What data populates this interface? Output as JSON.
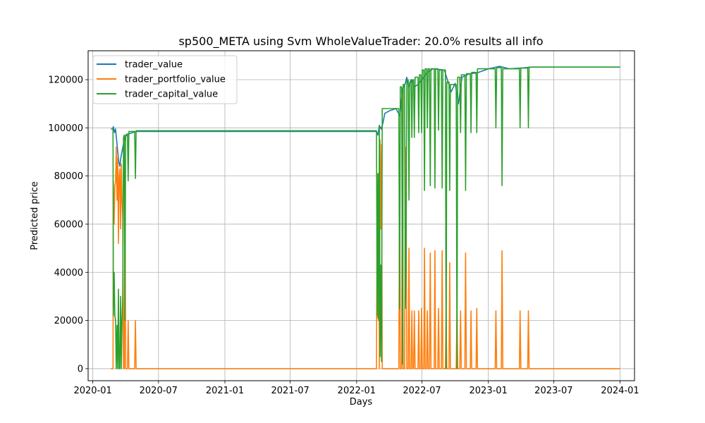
{
  "chart_data": {
    "type": "line",
    "title": "sp500_META using Svm WholeValueTrader: 20.0% results all info",
    "xlabel": "Days",
    "ylabel": "Predicted price",
    "xlim": [
      "2019-12-19",
      "2024-02-10"
    ],
    "ylim": [
      -5000,
      132000
    ],
    "x_ticks": [
      "2020-01-01",
      "2020-07-01",
      "2021-01-01",
      "2021-07-01",
      "2022-01-01",
      "2022-07-01",
      "2023-01-01",
      "2023-07-01",
      "2024-01-01"
    ],
    "x_tick_labels": [
      "2020-01",
      "2020-07",
      "2021-01",
      "2021-07",
      "2022-01",
      "2022-07",
      "2023-01",
      "2023-07",
      "2024-01"
    ],
    "y_ticks": [
      0,
      20000,
      40000,
      60000,
      80000,
      100000,
      120000
    ],
    "y_tick_labels": [
      "0",
      "20000",
      "40000",
      "60000",
      "80000",
      "100000",
      "120000"
    ],
    "grid": true,
    "legend_position": "top-left",
    "series": [
      {
        "name": "trader_value",
        "color": "#1f77b4",
        "points": [
          [
            "2020-02-25",
            99500
          ],
          [
            "2020-02-27",
            100500
          ],
          [
            "2020-03-01",
            98000
          ],
          [
            "2020-03-04",
            99500
          ],
          [
            "2020-03-07",
            95000
          ],
          [
            "2020-03-10",
            90000
          ],
          [
            "2020-03-13",
            86000
          ],
          [
            "2020-03-16",
            84000
          ],
          [
            "2020-03-19",
            88000
          ],
          [
            "2020-03-23",
            91000
          ],
          [
            "2020-03-27",
            94000
          ],
          [
            "2020-04-01",
            96500
          ],
          [
            "2020-04-10",
            97500
          ],
          [
            "2020-04-20",
            98000
          ],
          [
            "2020-05-01",
            98500
          ],
          [
            "2020-05-15",
            98500
          ],
          [
            "2022-02-25",
            98500
          ],
          [
            "2022-03-01",
            97000
          ],
          [
            "2022-03-05",
            101000
          ],
          [
            "2022-03-10",
            99500
          ],
          [
            "2022-03-15",
            102000
          ],
          [
            "2022-03-20",
            106000
          ],
          [
            "2022-04-01",
            107000
          ],
          [
            "2022-04-20",
            108000
          ],
          [
            "2022-05-01",
            105000
          ],
          [
            "2022-05-08",
            116000
          ],
          [
            "2022-05-15",
            118000
          ],
          [
            "2022-05-20",
            121000
          ],
          [
            "2022-05-25",
            117000
          ],
          [
            "2022-06-01",
            120000
          ],
          [
            "2022-06-10",
            117000
          ],
          [
            "2022-06-20",
            118000
          ],
          [
            "2022-07-01",
            120000
          ],
          [
            "2022-07-15",
            123000
          ],
          [
            "2022-08-01",
            124500
          ],
          [
            "2022-09-01",
            124000
          ],
          [
            "2022-09-20",
            115000
          ],
          [
            "2022-10-01",
            118500
          ],
          [
            "2022-10-10",
            110000
          ],
          [
            "2022-10-20",
            121000
          ],
          [
            "2022-11-10",
            122500
          ],
          [
            "2022-12-01",
            122800
          ],
          [
            "2023-01-01",
            124500
          ],
          [
            "2023-02-01",
            125500
          ],
          [
            "2023-03-01",
            124500
          ],
          [
            "2023-04-01",
            124800
          ],
          [
            "2023-05-01",
            125200
          ],
          [
            "2024-01-01",
            125200
          ]
        ]
      },
      {
        "name": "trader_portfolio_value",
        "color": "#ff7f0e",
        "points": [
          [
            "2020-02-20",
            0
          ],
          [
            "2020-02-26",
            0
          ],
          [
            "2020-02-27",
            78000
          ],
          [
            "2020-02-29",
            60000
          ],
          [
            "2020-03-02",
            76000
          ],
          [
            "2020-03-04",
            77000
          ],
          [
            "2020-03-06",
            92000
          ],
          [
            "2020-03-08",
            70000
          ],
          [
            "2020-03-10",
            88000
          ],
          [
            "2020-03-12",
            52000
          ],
          [
            "2020-03-14",
            80000
          ],
          [
            "2020-03-16",
            83000
          ],
          [
            "2020-03-18",
            58000
          ],
          [
            "2020-03-20",
            85000
          ],
          [
            "2020-03-22",
            70000
          ],
          [
            "2020-03-24",
            62000
          ],
          [
            "2020-03-26",
            0
          ],
          [
            "2020-03-28",
            0
          ],
          [
            "2020-03-30",
            77000
          ],
          [
            "2020-04-01",
            0
          ],
          [
            "2020-04-06",
            0
          ],
          [
            "2020-04-08",
            20000
          ],
          [
            "2020-04-10",
            0
          ],
          [
            "2020-04-26",
            0
          ],
          [
            "2020-04-28",
            20000
          ],
          [
            "2020-04-30",
            0
          ],
          [
            "2022-02-25",
            0
          ],
          [
            "2022-02-27",
            76000
          ],
          [
            "2022-03-01",
            21000
          ],
          [
            "2022-03-03",
            81000
          ],
          [
            "2022-03-05",
            0
          ],
          [
            "2022-03-07",
            95000
          ],
          [
            "2022-03-09",
            58000
          ],
          [
            "2022-03-11",
            93000
          ],
          [
            "2022-03-13",
            0
          ],
          [
            "2022-04-28",
            0
          ],
          [
            "2022-04-30",
            79000
          ],
          [
            "2022-05-02",
            0
          ],
          [
            "2022-05-06",
            0
          ],
          [
            "2022-05-08",
            114000
          ],
          [
            "2022-05-10",
            0
          ],
          [
            "2022-05-14",
            0
          ],
          [
            "2022-05-16",
            92000
          ],
          [
            "2022-05-18",
            76000
          ],
          [
            "2022-05-20",
            0
          ],
          [
            "2022-05-24",
            0
          ],
          [
            "2022-05-26",
            50000
          ],
          [
            "2022-05-28",
            0
          ],
          [
            "2022-06-01",
            0
          ],
          [
            "2022-06-03",
            24000
          ],
          [
            "2022-06-05",
            0
          ],
          [
            "2022-06-08",
            0
          ],
          [
            "2022-06-10",
            24000
          ],
          [
            "2022-06-12",
            0
          ],
          [
            "2022-06-20",
            0
          ],
          [
            "2022-06-22",
            24000
          ],
          [
            "2022-06-24",
            0
          ],
          [
            "2022-06-28",
            0
          ],
          [
            "2022-06-30",
            25000
          ],
          [
            "2022-07-02",
            0
          ],
          [
            "2022-07-06",
            0
          ],
          [
            "2022-07-08",
            50000
          ],
          [
            "2022-07-10",
            0
          ],
          [
            "2022-07-14",
            0
          ],
          [
            "2022-07-16",
            24000
          ],
          [
            "2022-07-18",
            0
          ],
          [
            "2022-07-22",
            0
          ],
          [
            "2022-07-24",
            48000
          ],
          [
            "2022-07-26",
            0
          ],
          [
            "2022-08-04",
            0
          ],
          [
            "2022-08-06",
            49000
          ],
          [
            "2022-08-08",
            0
          ],
          [
            "2022-08-14",
            0
          ],
          [
            "2022-08-16",
            25000
          ],
          [
            "2022-08-18",
            0
          ],
          [
            "2022-08-24",
            0
          ],
          [
            "2022-08-26",
            49000
          ],
          [
            "2022-08-28",
            0
          ],
          [
            "2022-09-04",
            0
          ],
          [
            "2022-09-06",
            24000
          ],
          [
            "2022-09-08",
            0
          ],
          [
            "2022-09-14",
            0
          ],
          [
            "2022-09-16",
            44000
          ],
          [
            "2022-09-18",
            0
          ],
          [
            "2022-10-04",
            0
          ],
          [
            "2022-10-06",
            24000
          ],
          [
            "2022-10-08",
            0
          ],
          [
            "2022-10-14",
            0
          ],
          [
            "2022-10-16",
            24000
          ],
          [
            "2022-10-18",
            0
          ],
          [
            "2022-10-28",
            0
          ],
          [
            "2022-10-30",
            48000
          ],
          [
            "2022-11-01",
            0
          ],
          [
            "2022-11-12",
            0
          ],
          [
            "2022-11-14",
            24000
          ],
          [
            "2022-11-16",
            0
          ],
          [
            "2022-11-28",
            0
          ],
          [
            "2022-11-30",
            25000
          ],
          [
            "2022-12-02",
            0
          ],
          [
            "2023-01-20",
            0
          ],
          [
            "2023-01-22",
            24000
          ],
          [
            "2023-01-24",
            0
          ],
          [
            "2023-02-06",
            0
          ],
          [
            "2023-02-08",
            49000
          ],
          [
            "2023-02-10",
            0
          ],
          [
            "2023-03-28",
            0
          ],
          [
            "2023-03-30",
            24000
          ],
          [
            "2023-04-01",
            0
          ],
          [
            "2023-04-20",
            0
          ],
          [
            "2023-04-22",
            24000
          ],
          [
            "2023-04-24",
            0
          ],
          [
            "2024-01-01",
            0
          ]
        ]
      },
      {
        "name": "trader_capital_value",
        "color": "#2ca02c",
        "points": [
          [
            "2020-02-20",
            99500
          ],
          [
            "2020-02-26",
            99500
          ],
          [
            "2020-02-27",
            22000
          ],
          [
            "2020-02-29",
            40000
          ],
          [
            "2020-03-02",
            22000
          ],
          [
            "2020-03-04",
            20000
          ],
          [
            "2020-03-06",
            0
          ],
          [
            "2020-03-08",
            18000
          ],
          [
            "2020-03-10",
            0
          ],
          [
            "2020-03-12",
            33000
          ],
          [
            "2020-03-14",
            0
          ],
          [
            "2020-03-16",
            0
          ],
          [
            "2020-03-18",
            30000
          ],
          [
            "2020-03-20",
            0
          ],
          [
            "2020-03-22",
            20000
          ],
          [
            "2020-03-24",
            30000
          ],
          [
            "2020-03-26",
            96000
          ],
          [
            "2020-03-28",
            97000
          ],
          [
            "2020-03-30",
            20000
          ],
          [
            "2020-04-01",
            97000
          ],
          [
            "2020-04-06",
            97500
          ],
          [
            "2020-04-08",
            78000
          ],
          [
            "2020-04-10",
            98500
          ],
          [
            "2020-04-26",
            98500
          ],
          [
            "2020-04-28",
            79000
          ],
          [
            "2020-04-30",
            98800
          ],
          [
            "2022-02-25",
            98800
          ],
          [
            "2022-02-27",
            22000
          ],
          [
            "2022-03-01",
            81000
          ],
          [
            "2022-03-03",
            20000
          ],
          [
            "2022-03-05",
            101000
          ],
          [
            "2022-03-07",
            5000
          ],
          [
            "2022-03-09",
            43000
          ],
          [
            "2022-03-11",
            3000
          ],
          [
            "2022-03-13",
            108000
          ],
          [
            "2022-04-28",
            108000
          ],
          [
            "2022-04-30",
            25000
          ],
          [
            "2022-05-02",
            117000
          ],
          [
            "2022-05-06",
            117000
          ],
          [
            "2022-05-08",
            2000
          ],
          [
            "2022-05-10",
            118000
          ],
          [
            "2022-05-14",
            118000
          ],
          [
            "2022-05-16",
            25000
          ],
          [
            "2022-05-18",
            45000
          ],
          [
            "2022-05-20",
            120000
          ],
          [
            "2022-05-24",
            120000
          ],
          [
            "2022-05-26",
            70000
          ],
          [
            "2022-05-28",
            119000
          ],
          [
            "2022-06-01",
            119000
          ],
          [
            "2022-06-03",
            96000
          ],
          [
            "2022-06-05",
            120000
          ],
          [
            "2022-06-08",
            120000
          ],
          [
            "2022-06-10",
            96000
          ],
          [
            "2022-06-12",
            121000
          ],
          [
            "2022-06-20",
            121000
          ],
          [
            "2022-06-22",
            98000
          ],
          [
            "2022-06-24",
            122000
          ],
          [
            "2022-06-28",
            122000
          ],
          [
            "2022-06-30",
            98000
          ],
          [
            "2022-07-02",
            124000
          ],
          [
            "2022-07-06",
            124000
          ],
          [
            "2022-07-08",
            74000
          ],
          [
            "2022-07-10",
            124500
          ],
          [
            "2022-07-14",
            124500
          ],
          [
            "2022-07-16",
            100000
          ],
          [
            "2022-07-18",
            124500
          ],
          [
            "2022-07-22",
            124500
          ],
          [
            "2022-07-24",
            76000
          ],
          [
            "2022-07-26",
            124500
          ],
          [
            "2022-08-04",
            124500
          ],
          [
            "2022-08-06",
            75000
          ],
          [
            "2022-08-08",
            124500
          ],
          [
            "2022-08-14",
            124500
          ],
          [
            "2022-08-16",
            99000
          ],
          [
            "2022-08-18",
            124000
          ],
          [
            "2022-08-24",
            124000
          ],
          [
            "2022-08-26",
            75000
          ],
          [
            "2022-08-28",
            124000
          ],
          [
            "2022-09-04",
            124000
          ],
          [
            "2022-09-06",
            0
          ],
          [
            "2022-09-08",
            119000
          ],
          [
            "2022-09-14",
            119000
          ],
          [
            "2022-09-16",
            74000
          ],
          [
            "2022-09-18",
            118000
          ],
          [
            "2022-10-04",
            118000
          ],
          [
            "2022-10-06",
            0
          ],
          [
            "2022-10-08",
            121000
          ],
          [
            "2022-10-14",
            121000
          ],
          [
            "2022-10-16",
            98000
          ],
          [
            "2022-10-18",
            122000
          ],
          [
            "2022-10-28",
            122000
          ],
          [
            "2022-10-30",
            74000
          ],
          [
            "2022-11-01",
            122500
          ],
          [
            "2022-11-12",
            122500
          ],
          [
            "2022-11-14",
            98000
          ],
          [
            "2022-11-16",
            123000
          ],
          [
            "2022-11-28",
            123000
          ],
          [
            "2022-11-30",
            98000
          ],
          [
            "2022-12-02",
            124500
          ],
          [
            "2023-01-20",
            124500
          ],
          [
            "2023-01-22",
            100000
          ],
          [
            "2023-01-24",
            125000
          ],
          [
            "2023-02-06",
            125000
          ],
          [
            "2023-02-08",
            76000
          ],
          [
            "2023-02-10",
            124500
          ],
          [
            "2023-03-28",
            124500
          ],
          [
            "2023-03-30",
            100000
          ],
          [
            "2023-04-01",
            124800
          ],
          [
            "2023-04-20",
            124800
          ],
          [
            "2023-04-22",
            100000
          ],
          [
            "2023-04-24",
            125200
          ],
          [
            "2024-01-01",
            125200
          ]
        ]
      }
    ]
  }
}
